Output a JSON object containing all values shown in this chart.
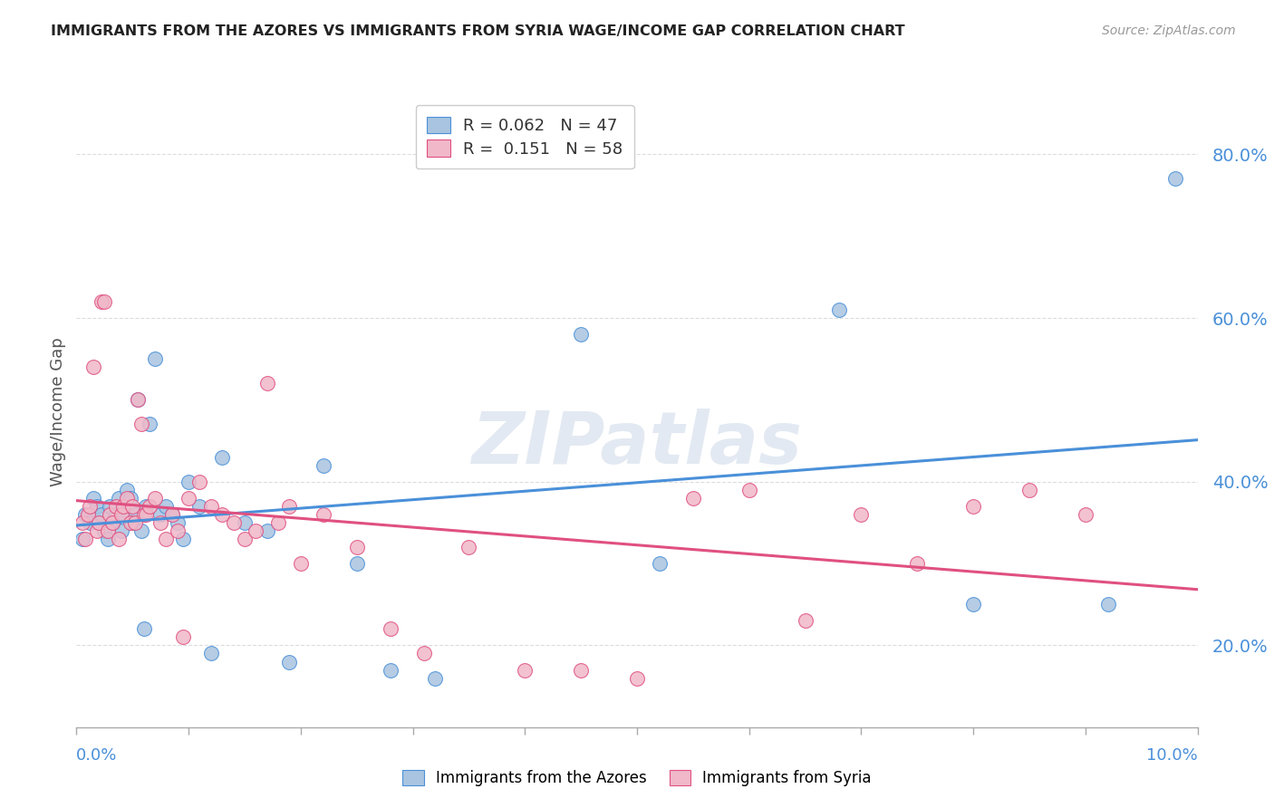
{
  "title": "IMMIGRANTS FROM THE AZORES VS IMMIGRANTS FROM SYRIA WAGE/INCOME GAP CORRELATION CHART",
  "source": "Source: ZipAtlas.com",
  "ylabel": "Wage/Income Gap",
  "xlim": [
    0.0,
    10.0
  ],
  "ylim": [
    10.0,
    87.0
  ],
  "yticks": [
    20.0,
    40.0,
    60.0,
    80.0
  ],
  "xticks": [
    0.0,
    1.0,
    2.0,
    3.0,
    4.0,
    5.0,
    6.0,
    7.0,
    8.0,
    9.0,
    10.0
  ],
  "azores_color": "#a8c4e0",
  "azores_line_color": "#4a90d9",
  "syria_color": "#f0b8c8",
  "syria_line_color": "#e05080",
  "azores_R": 0.062,
  "azores_N": 47,
  "syria_R": 0.151,
  "syria_N": 58,
  "azores_x": [
    0.05,
    0.08,
    0.12,
    0.15,
    0.18,
    0.2,
    0.22,
    0.25,
    0.28,
    0.3,
    0.33,
    0.35,
    0.38,
    0.4,
    0.42,
    0.45,
    0.48,
    0.5,
    0.52,
    0.55,
    0.58,
    0.6,
    0.62,
    0.65,
    0.7,
    0.75,
    0.8,
    0.85,
    0.9,
    0.95,
    1.0,
    1.1,
    1.2,
    1.3,
    1.5,
    1.7,
    1.9,
    2.2,
    2.5,
    2.8,
    3.2,
    4.5,
    5.2,
    6.8,
    8.0,
    9.2,
    9.8
  ],
  "azores_y": [
    33.0,
    36.0,
    35.0,
    38.0,
    37.0,
    35.0,
    36.0,
    34.0,
    33.0,
    37.0,
    35.0,
    36.0,
    38.0,
    34.0,
    36.0,
    39.0,
    38.0,
    35.0,
    36.0,
    50.0,
    34.0,
    22.0,
    37.0,
    47.0,
    55.0,
    36.0,
    37.0,
    36.0,
    35.0,
    33.0,
    40.0,
    37.0,
    19.0,
    43.0,
    35.0,
    34.0,
    18.0,
    42.0,
    30.0,
    17.0,
    16.0,
    58.0,
    30.0,
    61.0,
    25.0,
    25.0,
    77.0
  ],
  "syria_x": [
    0.05,
    0.08,
    0.1,
    0.12,
    0.15,
    0.18,
    0.2,
    0.22,
    0.25,
    0.28,
    0.3,
    0.32,
    0.35,
    0.38,
    0.4,
    0.42,
    0.45,
    0.48,
    0.5,
    0.52,
    0.55,
    0.58,
    0.6,
    0.62,
    0.65,
    0.7,
    0.75,
    0.8,
    0.85,
    0.9,
    0.95,
    1.0,
    1.1,
    1.2,
    1.3,
    1.4,
    1.5,
    1.6,
    1.7,
    1.8,
    1.9,
    2.0,
    2.2,
    2.5,
    2.8,
    3.1,
    3.5,
    4.0,
    4.5,
    5.0,
    5.5,
    6.0,
    6.5,
    7.0,
    7.5,
    8.0,
    8.5,
    9.0
  ],
  "syria_y": [
    35.0,
    33.0,
    36.0,
    37.0,
    54.0,
    34.0,
    35.0,
    62.0,
    62.0,
    34.0,
    36.0,
    35.0,
    37.0,
    33.0,
    36.0,
    37.0,
    38.0,
    35.0,
    37.0,
    35.0,
    50.0,
    47.0,
    36.0,
    36.0,
    37.0,
    38.0,
    35.0,
    33.0,
    36.0,
    34.0,
    21.0,
    38.0,
    40.0,
    37.0,
    36.0,
    35.0,
    33.0,
    34.0,
    52.0,
    35.0,
    37.0,
    30.0,
    36.0,
    32.0,
    22.0,
    19.0,
    32.0,
    17.0,
    17.0,
    16.0,
    38.0,
    39.0,
    23.0,
    36.0,
    30.0,
    37.0,
    39.0,
    36.0
  ],
  "watermark": "ZIPatlas",
  "background_color": "#ffffff",
  "grid_color": "#dddddd"
}
